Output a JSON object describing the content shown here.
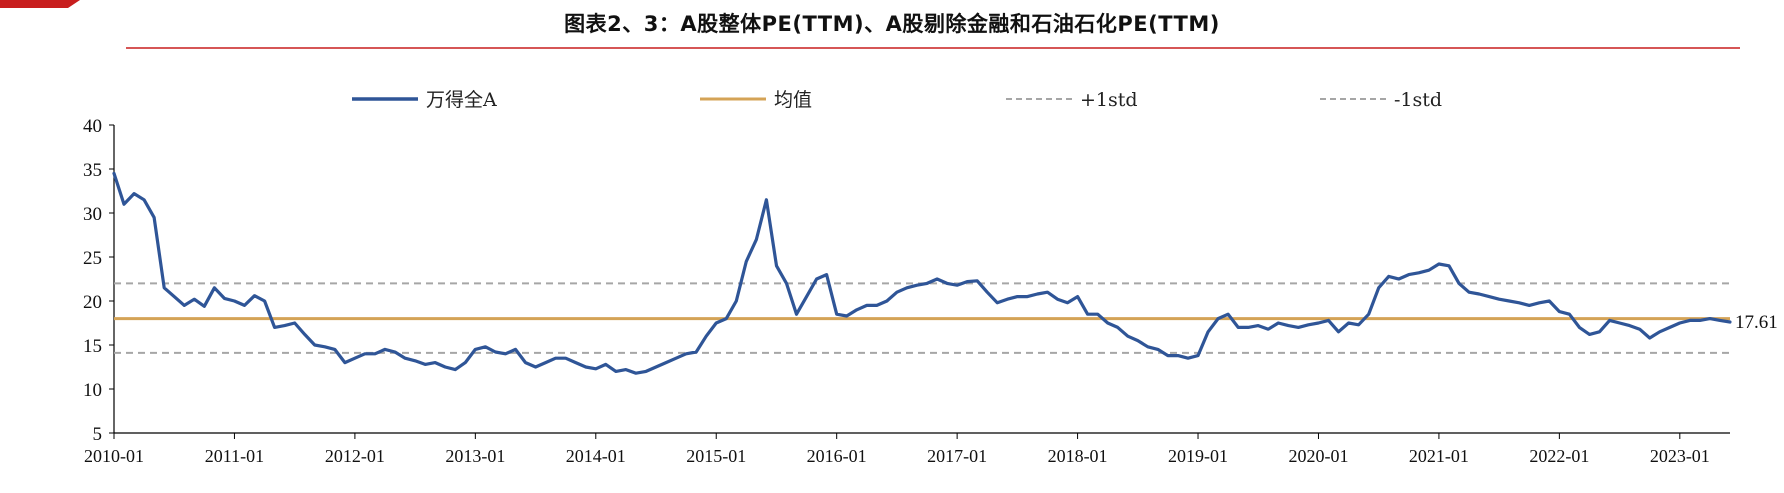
{
  "title": "图表2、3：A股整体PE(TTM)、A股剔除金融和石油石化PE(TTM)",
  "colors": {
    "accent_red": "#c81e1e",
    "series": "#2f5597",
    "mean": "#d4a356",
    "std": "#a6a6a6"
  },
  "legend": {
    "series_label": "万得全A",
    "mean_label": "均值",
    "plus_std_label": "+1std",
    "minus_std_label": "-1std"
  },
  "chart_data": {
    "type": "line",
    "xlabel": "",
    "ylabel": "",
    "ylim": [
      5,
      40
    ],
    "yticks": [
      "5",
      "10",
      "15",
      "20",
      "25",
      "30",
      "35",
      "40"
    ],
    "xticks": [
      "2010-01",
      "2011-01",
      "2012-01",
      "2013-01",
      "2014-01",
      "2015-01",
      "2016-01",
      "2017-01",
      "2018-01",
      "2019-01",
      "2020-01",
      "2021-01",
      "2022-01",
      "2023-01"
    ],
    "x_start": "2010-01",
    "x_end": "2023-06",
    "mean": 18.0,
    "plus_1std": 22.0,
    "minus_1std": 14.1,
    "end_label": "17.61",
    "legend_position": "top",
    "grid": false,
    "series": [
      {
        "name": "万得全A",
        "points": [
          [
            "2010-01",
            34.5
          ],
          [
            "2010-02",
            31.0
          ],
          [
            "2010-03",
            32.2
          ],
          [
            "2010-04",
            31.5
          ],
          [
            "2010-05",
            29.5
          ],
          [
            "2010-06",
            21.5
          ],
          [
            "2010-07",
            20.5
          ],
          [
            "2010-08",
            19.5
          ],
          [
            "2010-09",
            20.2
          ],
          [
            "2010-10",
            19.4
          ],
          [
            "2010-11",
            21.5
          ],
          [
            "2010-12",
            20.3
          ],
          [
            "2011-01",
            20.0
          ],
          [
            "2011-02",
            19.5
          ],
          [
            "2011-03",
            20.6
          ],
          [
            "2011-04",
            20.0
          ],
          [
            "2011-05",
            17.0
          ],
          [
            "2011-06",
            17.2
          ],
          [
            "2011-07",
            17.5
          ],
          [
            "2011-08",
            16.2
          ],
          [
            "2011-09",
            15.0
          ],
          [
            "2011-10",
            14.8
          ],
          [
            "2011-11",
            14.5
          ],
          [
            "2011-12",
            13.0
          ],
          [
            "2012-01",
            13.5
          ],
          [
            "2012-02",
            14.0
          ],
          [
            "2012-03",
            14.0
          ],
          [
            "2012-04",
            14.5
          ],
          [
            "2012-05",
            14.2
          ],
          [
            "2012-06",
            13.5
          ],
          [
            "2012-07",
            13.2
          ],
          [
            "2012-08",
            12.8
          ],
          [
            "2012-09",
            13.0
          ],
          [
            "2012-10",
            12.5
          ],
          [
            "2012-11",
            12.2
          ],
          [
            "2012-12",
            13.0
          ],
          [
            "2013-01",
            14.5
          ],
          [
            "2013-02",
            14.8
          ],
          [
            "2013-03",
            14.2
          ],
          [
            "2013-04",
            14.0
          ],
          [
            "2013-05",
            14.5
          ],
          [
            "2013-06",
            13.0
          ],
          [
            "2013-07",
            12.5
          ],
          [
            "2013-08",
            13.0
          ],
          [
            "2013-09",
            13.5
          ],
          [
            "2013-10",
            13.5
          ],
          [
            "2013-11",
            13.0
          ],
          [
            "2013-12",
            12.5
          ],
          [
            "2014-01",
            12.3
          ],
          [
            "2014-02",
            12.8
          ],
          [
            "2014-03",
            12.0
          ],
          [
            "2014-04",
            12.2
          ],
          [
            "2014-05",
            11.8
          ],
          [
            "2014-06",
            12.0
          ],
          [
            "2014-07",
            12.5
          ],
          [
            "2014-08",
            13.0
          ],
          [
            "2014-09",
            13.5
          ],
          [
            "2014-10",
            14.0
          ],
          [
            "2014-11",
            14.2
          ],
          [
            "2014-12",
            16.0
          ],
          [
            "2015-01",
            17.5
          ],
          [
            "2015-02",
            18.0
          ],
          [
            "2015-03",
            20.0
          ],
          [
            "2015-04",
            24.5
          ],
          [
            "2015-05",
            27.0
          ],
          [
            "2015-06",
            31.5
          ],
          [
            "2015-07",
            24.0
          ],
          [
            "2015-08",
            22.0
          ],
          [
            "2015-09",
            18.5
          ],
          [
            "2015-10",
            20.5
          ],
          [
            "2015-11",
            22.5
          ],
          [
            "2015-12",
            23.0
          ],
          [
            "2016-01",
            18.5
          ],
          [
            "2016-02",
            18.3
          ],
          [
            "2016-03",
            19.0
          ],
          [
            "2016-04",
            19.5
          ],
          [
            "2016-05",
            19.5
          ],
          [
            "2016-06",
            20.0
          ],
          [
            "2016-07",
            21.0
          ],
          [
            "2016-08",
            21.5
          ],
          [
            "2016-09",
            21.8
          ],
          [
            "2016-10",
            22.0
          ],
          [
            "2016-11",
            22.5
          ],
          [
            "2016-12",
            22.0
          ],
          [
            "2017-01",
            21.8
          ],
          [
            "2017-02",
            22.2
          ],
          [
            "2017-03",
            22.3
          ],
          [
            "2017-04",
            21.0
          ],
          [
            "2017-05",
            19.8
          ],
          [
            "2017-06",
            20.2
          ],
          [
            "2017-07",
            20.5
          ],
          [
            "2017-08",
            20.5
          ],
          [
            "2017-09",
            20.8
          ],
          [
            "2017-10",
            21.0
          ],
          [
            "2017-11",
            20.2
          ],
          [
            "2017-12",
            19.8
          ],
          [
            "2018-01",
            20.5
          ],
          [
            "2018-02",
            18.5
          ],
          [
            "2018-03",
            18.5
          ],
          [
            "2018-04",
            17.5
          ],
          [
            "2018-05",
            17.0
          ],
          [
            "2018-06",
            16.0
          ],
          [
            "2018-07",
            15.5
          ],
          [
            "2018-08",
            14.8
          ],
          [
            "2018-09",
            14.5
          ],
          [
            "2018-10",
            13.8
          ],
          [
            "2018-11",
            13.8
          ],
          [
            "2018-12",
            13.5
          ],
          [
            "2019-01",
            13.8
          ],
          [
            "2019-02",
            16.5
          ],
          [
            "2019-03",
            18.0
          ],
          [
            "2019-04",
            18.5
          ],
          [
            "2019-05",
            17.0
          ],
          [
            "2019-06",
            17.0
          ],
          [
            "2019-07",
            17.2
          ],
          [
            "2019-08",
            16.8
          ],
          [
            "2019-09",
            17.5
          ],
          [
            "2019-10",
            17.2
          ],
          [
            "2019-11",
            17.0
          ],
          [
            "2019-12",
            17.3
          ],
          [
            "2020-01",
            17.5
          ],
          [
            "2020-02",
            17.8
          ],
          [
            "2020-03",
            16.5
          ],
          [
            "2020-04",
            17.5
          ],
          [
            "2020-05",
            17.3
          ],
          [
            "2020-06",
            18.5
          ],
          [
            "2020-07",
            21.5
          ],
          [
            "2020-08",
            22.8
          ],
          [
            "2020-09",
            22.5
          ],
          [
            "2020-10",
            23.0
          ],
          [
            "2020-11",
            23.2
          ],
          [
            "2020-12",
            23.5
          ],
          [
            "2021-01",
            24.2
          ],
          [
            "2021-02",
            24.0
          ],
          [
            "2021-03",
            22.0
          ],
          [
            "2021-04",
            21.0
          ],
          [
            "2021-05",
            20.8
          ],
          [
            "2021-06",
            20.5
          ],
          [
            "2021-07",
            20.2
          ],
          [
            "2021-08",
            20.0
          ],
          [
            "2021-09",
            19.8
          ],
          [
            "2021-10",
            19.5
          ],
          [
            "2021-11",
            19.8
          ],
          [
            "2021-12",
            20.0
          ],
          [
            "2022-01",
            18.8
          ],
          [
            "2022-02",
            18.5
          ],
          [
            "2022-03",
            17.0
          ],
          [
            "2022-04",
            16.2
          ],
          [
            "2022-05",
            16.5
          ],
          [
            "2022-06",
            17.8
          ],
          [
            "2022-07",
            17.5
          ],
          [
            "2022-08",
            17.2
          ],
          [
            "2022-09",
            16.8
          ],
          [
            "2022-10",
            15.8
          ],
          [
            "2022-11",
            16.5
          ],
          [
            "2022-12",
            17.0
          ],
          [
            "2023-01",
            17.5
          ],
          [
            "2023-02",
            17.8
          ],
          [
            "2023-03",
            17.8
          ],
          [
            "2023-04",
            18.0
          ],
          [
            "2023-05",
            17.8
          ],
          [
            "2023-06",
            17.61
          ]
        ]
      }
    ]
  }
}
